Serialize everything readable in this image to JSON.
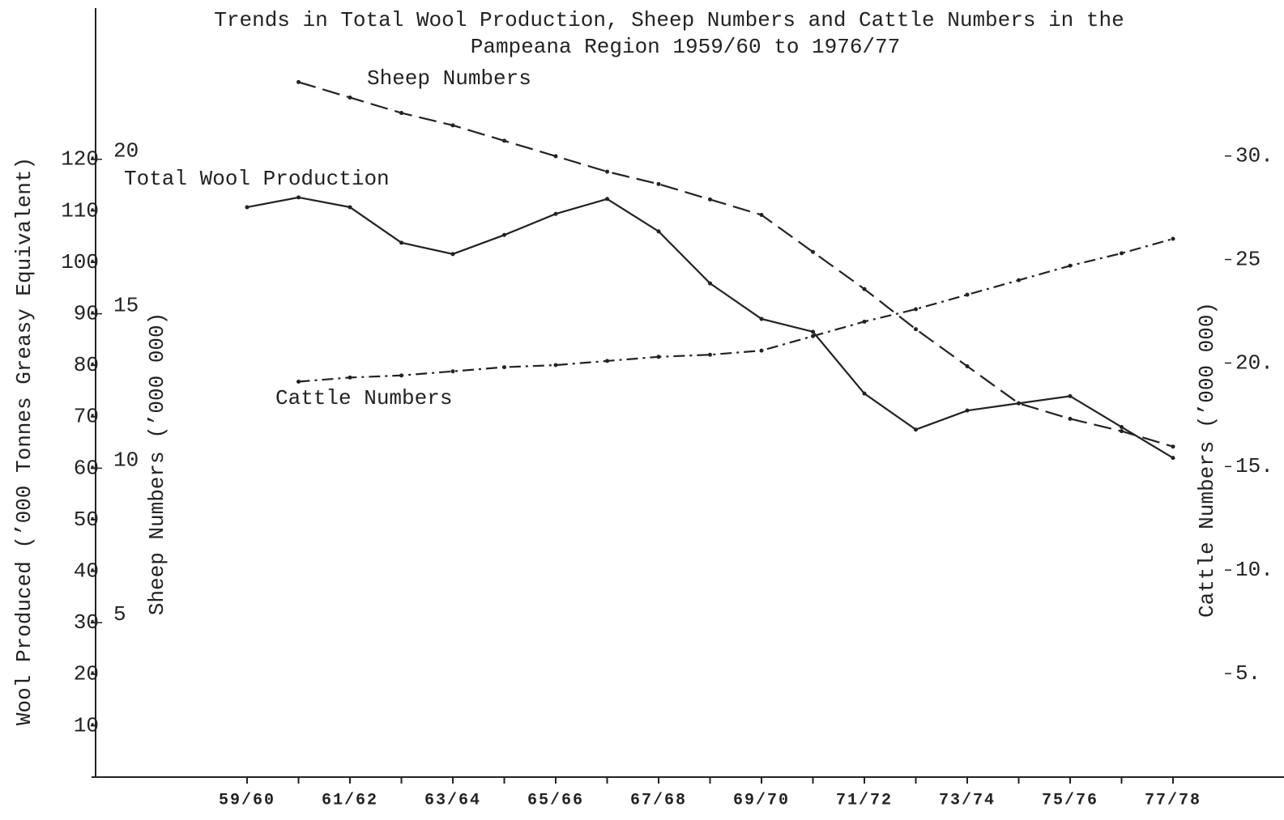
{
  "chart_data": {
    "type": "line",
    "title": [
      "Trends in Total Wool Production, Sheep Numbers and Cattle Numbers in the",
      "Pampeana Region 1959/60 to 1976/77"
    ],
    "y_label": "Wool Produced (’000 Tonnes Greasy Equivalent)",
    "y2_label": "Sheep Numbers (’000 000)",
    "y3_label": "Cattle Numbers (’000 000)",
    "categories": [
      "59/60",
      null,
      "61/62",
      null,
      "63/64",
      null,
      "65/66",
      null,
      "67/68",
      null,
      "69/70",
      null,
      "71/72",
      null,
      "73/74",
      null,
      "75/76",
      null,
      "77/78"
    ],
    "series": [
      {
        "name": "Total Wool Production",
        "color": "#222222",
        "dash": "solid",
        "axis": "y",
        "values": [
          110.7,
          112.6,
          110.7,
          103.8,
          101.6,
          105.3,
          109.4,
          112.3,
          106,
          95.9,
          89,
          86.5,
          74.5,
          67.5,
          71.2,
          72.6,
          74,
          68,
          62
        ]
      },
      {
        "name": "Sheep Numbers",
        "color": "#222222",
        "dash": "dashed",
        "axis": "y2",
        "values": [
          null,
          22.5,
          22.0,
          21.5,
          21.1,
          20.6,
          20.1,
          19.6,
          19.2,
          18.7,
          18.2,
          17.0,
          15.8,
          14.5,
          13.3,
          12.1,
          11.6,
          11.2,
          10.7
        ]
      },
      {
        "name": "Cattle Numbers",
        "color": "#222222",
        "dash": "dashdot",
        "axis": "y3",
        "values": [
          null,
          19.1,
          19.3,
          19.4,
          19.6,
          19.8,
          19.9,
          20.1,
          20.3,
          20.4,
          20.6,
          21.3,
          22.0,
          22.6,
          23.3,
          24.0,
          24.7,
          25.3,
          26.0
        ]
      }
    ],
    "ylim": [
      0,
      150
    ],
    "yticks": [
      10,
      20,
      30,
      40,
      50,
      60,
      70,
      80,
      90,
      100,
      110,
      120
    ],
    "y2lim": [
      0,
      25
    ],
    "y2ticks": [
      5,
      10,
      15,
      20
    ],
    "y3lim": [
      0,
      37.3
    ],
    "y3ticks": [
      {
        "value": 5,
        "label": "5."
      },
      {
        "value": 10,
        "label": "10."
      },
      {
        "value": 15,
        "label": "15."
      },
      {
        "value": 20,
        "label": "20."
      },
      {
        "value": 25,
        "label": "25"
      },
      {
        "value": 30,
        "label": "30."
      }
    ],
    "grid": false
  }
}
